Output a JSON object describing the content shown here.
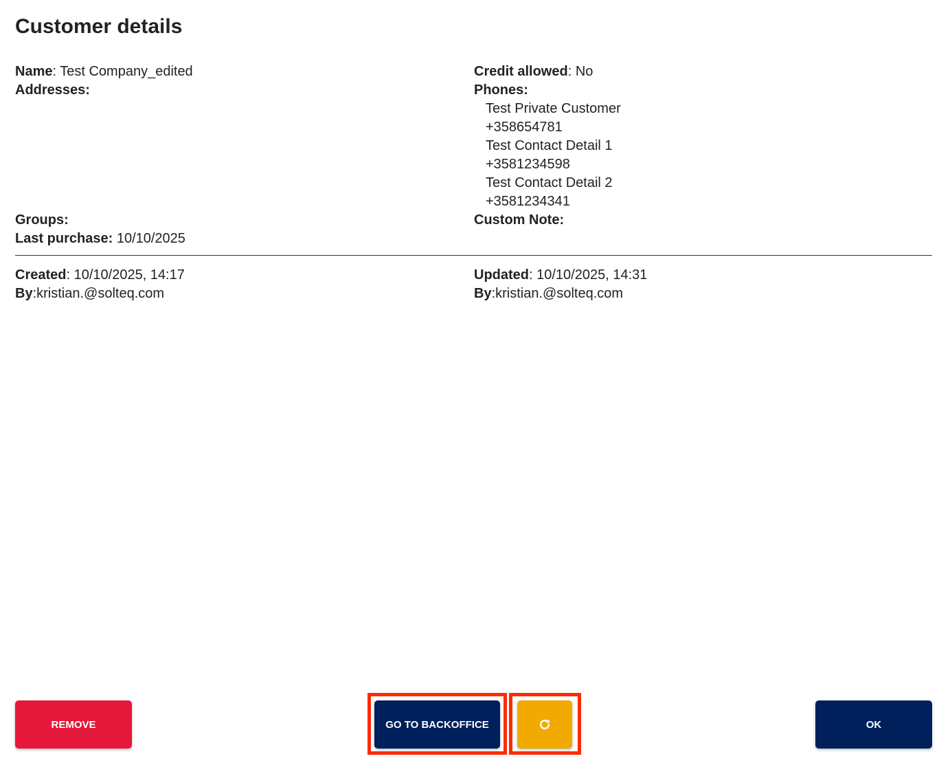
{
  "title": "Customer details",
  "fields": {
    "name_label": "Name",
    "name_value": ": Test Company_edited",
    "addresses_label": "Addresses:",
    "groups_label": "Groups:",
    "last_purchase_label": "Last purchase:",
    "last_purchase_value": " 10/10/2025",
    "credit_label": "Credit allowed",
    "credit_value": ": No",
    "phones_label": "Phones:",
    "phones": [
      "Test Private Customer",
      "+358654781",
      "Test Contact Detail 1",
      "+3581234598",
      "Test Contact Detail 2",
      "+3581234341"
    ],
    "custom_note_label": "Custom Note:"
  },
  "meta": {
    "created_label": "Created",
    "created_value": ": 10/10/2025, 14:17",
    "created_by_label": "By",
    "created_by_value": ":kristian.@solteq.com",
    "updated_label": "Updated",
    "updated_value": ": 10/10/2025, 14:31",
    "updated_by_label": "By",
    "updated_by_value": ":kristian.@solteq.com"
  },
  "buttons": {
    "remove": "REMOVE",
    "backoffice": "GO TO BACKOFFICE",
    "refresh_icon": "refresh-icon",
    "ok": "OK"
  },
  "colors": {
    "remove": "#e5173a",
    "navy": "#00205b",
    "refresh": "#f2a900",
    "highlight": "#ff2a00"
  }
}
